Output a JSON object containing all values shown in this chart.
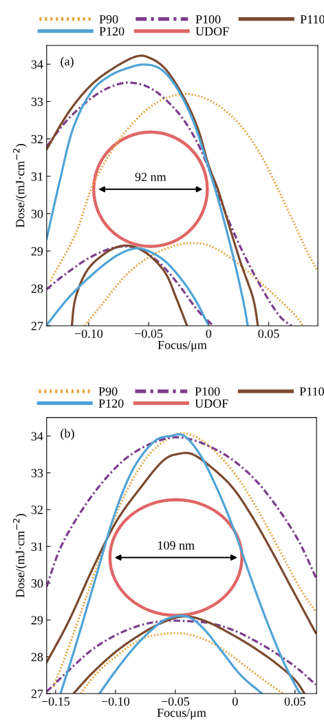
{
  "chart_data": [
    {
      "type": "line",
      "title": "(a)",
      "xlabel": "Focus/μm",
      "ylabel": "Dose/(mJ·cm$^{−2}$)",
      "xlim": [
        -0.135,
        0.091
      ],
      "ylim": [
        27,
        34.5
      ],
      "xticks": [
        {
          "value": -0.1,
          "label": "−0.10"
        },
        {
          "value": -0.05,
          "label": "−0.05"
        },
        0,
        0.05
      ],
      "yticks": [
        27,
        28,
        29,
        30,
        31,
        32,
        33,
        34
      ],
      "legend": "top",
      "grid": false,
      "annotations": [
        "92 nm"
      ],
      "series": [
        {
          "name": "P90",
          "color": "#e8a33d",
          "line_style": "dotted",
          "x": [
            -0.132,
            -0.111,
            -0.098,
            -0.0824,
            -0.067,
            -0.0498,
            -0.0326,
            -0.0172,
            -0.0019,
            0.0134,
            0.0287,
            0.044,
            0.0575,
            0.0709,
            0.0824,
            0.091
          ],
          "values": [
            28.2,
            29.45,
            30.65,
            31.6,
            32.28,
            32.83,
            33.13,
            33.2,
            33.07,
            32.77,
            32.28,
            31.54,
            30.68,
            29.76,
            28.96,
            28.47
          ]
        },
        {
          "color": "#e8a33d",
          "line_style": "dotted",
          "x": [
            -0.1035,
            -0.088,
            -0.069,
            -0.0498,
            -0.0307,
            -0.0153,
            0.0,
            0.0172,
            0.0364,
            0.0556,
            0.073,
            0.0785
          ],
          "values": [
            27,
            27.61,
            28.35,
            28.84,
            29.12,
            29.21,
            29.15,
            28.84,
            28.35,
            27.8,
            27.25,
            27
          ]
        },
        {
          "name": "P100",
          "color": "#7d3c8c",
          "line_style": "dashdot",
          "x": [
            -0.135,
            -0.1207,
            -0.1054,
            -0.09,
            -0.0747,
            -0.063,
            -0.0498,
            -0.0364,
            -0.021,
            -0.0077,
            0.0019,
            0.0134,
            0.025,
            0.0364,
            0.048,
            0.0594,
            0.069
          ],
          "values": [
            31.79,
            32.4,
            32.89,
            33.26,
            33.47,
            33.5,
            33.38,
            33.07,
            32.52,
            31.79,
            31.05,
            30.07,
            29.21,
            28.47,
            27.8,
            27.25,
            27
          ]
        },
        {
          "color": "#7d3c8c",
          "line_style": "dashdot",
          "x": [
            -0.135,
            -0.1207,
            -0.1015,
            -0.0824,
            -0.067,
            -0.0556,
            -0.0402,
            -0.025,
            -0.0096,
            0.0038
          ],
          "values": [
            27.98,
            28.35,
            28.78,
            29.06,
            29.12,
            29.02,
            28.66,
            28.1,
            27.43,
            27
          ]
        },
        {
          "name": "P110",
          "color": "#7b4a2e",
          "line_style": "solid",
          "x": [
            -0.135,
            -0.117,
            -0.098,
            -0.079,
            -0.061,
            -0.05,
            -0.036,
            -0.021,
            -0.009,
            0.0,
            0.008,
            0.018,
            0.027,
            0.037,
            0.041
          ],
          "values": [
            31.72,
            32.7,
            33.44,
            33.9,
            34.2,
            34.18,
            33.87,
            33.13,
            32.28,
            31.29,
            30.62,
            29.58,
            28.66,
            27.74,
            27
          ]
        },
        {
          "color": "#7b4a2e",
          "line_style": "solid",
          "x": [
            -0.114,
            -0.111,
            -0.1015,
            -0.088,
            -0.075,
            -0.063,
            -0.05,
            -0.036,
            -0.027,
            -0.018
          ],
          "values": [
            27,
            27.74,
            28.47,
            28.9,
            29.12,
            29.12,
            28.9,
            28.41,
            27.74,
            27
          ]
        },
        {
          "name": "P120",
          "color": "#4fa3d6",
          "line_style": "solid",
          "x": [
            -0.135,
            -0.1246,
            -0.113,
            -0.0977,
            -0.0824,
            -0.067,
            -0.0537,
            -0.04,
            -0.0268,
            -0.0134,
            -0.0019,
            0.0096,
            0.021,
            0.0288,
            0.0326
          ],
          "values": [
            29.33,
            30.8,
            32.28,
            33.26,
            33.69,
            33.9,
            33.99,
            33.87,
            33.38,
            32.52,
            31.42,
            30.19,
            28.78,
            27.67,
            27
          ]
        },
        {
          "color": "#4fa3d6",
          "line_style": "solid",
          "x": [
            -0.134,
            -0.117,
            -0.0977,
            -0.0785,
            -0.063,
            -0.0517,
            -0.036,
            -0.021,
            -0.0096,
            -0.001
          ],
          "values": [
            27.06,
            27.74,
            28.35,
            28.84,
            29.06,
            29.02,
            28.72,
            28.17,
            27.61,
            27.06
          ]
        },
        {
          "name": "UDOF",
          "color": "#e06666",
          "type": "other"
        }
      ]
    },
    {
      "type": "line",
      "title": "(b)",
      "xlabel": "Focus/μm",
      "ylabel": "Dose/(mJ·cm$^{−2}$)",
      "xlim": [
        -0.1575,
        0.068
      ],
      "ylim": [
        27,
        34.5
      ],
      "xticks": [
        {
          "value": -0.15,
          "label": "−0.15"
        },
        {
          "value": -0.1,
          "label": "−0.10"
        },
        {
          "value": -0.05,
          "label": "−0.05"
        },
        0,
        0.05
      ],
      "yticks": [
        27,
        28,
        29,
        30,
        31,
        32,
        33,
        34
      ],
      "legend": "top",
      "grid": false,
      "annotations": [
        "109 nm"
      ],
      "series": [
        {
          "name": "P90",
          "color": "#e8a33d",
          "line_style": "dotted",
          "x": [
            -0.1518,
            -0.139,
            -0.1232,
            -0.1094,
            -0.0937,
            -0.076,
            -0.0602,
            -0.0465,
            -0.0307,
            -0.013,
            0.0047,
            0.0224,
            0.0382,
            0.054,
            0.0673
          ],
          "values": [
            27.18,
            28.27,
            29.74,
            31.02,
            32.3,
            33.33,
            33.84,
            34.07,
            33.94,
            33.46,
            32.75,
            31.79,
            30.83,
            29.87,
            29.23
          ]
        },
        {
          "color": "#e8a33d",
          "line_style": "dotted",
          "x": [
            -0.1291,
            -0.1154,
            -0.0996,
            -0.0799,
            -0.0602,
            -0.0406,
            -0.0209,
            -0.0051,
            0.0106,
            0.0264,
            0.0402
          ],
          "values": [
            27,
            27.56,
            28.01,
            28.46,
            28.62,
            28.62,
            28.4,
            28.08,
            27.69,
            27.31,
            27
          ]
        },
        {
          "name": "P100",
          "color": "#7d3c8c",
          "line_style": "dashdot",
          "x": [
            -0.1575,
            -0.1468,
            -0.133,
            -0.1154,
            -0.0957,
            -0.076,
            -0.0563,
            -0.0406,
            -0.0209,
            -0.0012,
            0.0185,
            0.0382,
            0.054,
            0.0673
          ],
          "values": [
            29.9,
            30.9,
            31.73,
            32.56,
            33.27,
            33.71,
            33.94,
            33.94,
            33.71,
            33.33,
            32.75,
            31.92,
            31.09,
            30.16
          ]
        },
        {
          "color": "#7d3c8c",
          "line_style": "dashdot",
          "x": [
            -0.1575,
            -0.139,
            -0.1193,
            -0.0996,
            -0.0799,
            -0.0602,
            -0.0406,
            -0.0209,
            -0.0012,
            0.0185,
            0.0382,
            0.054,
            0.0673
          ],
          "values": [
            27.05,
            27.63,
            28.2,
            28.59,
            28.85,
            28.97,
            28.97,
            28.91,
            28.72,
            28.4,
            28.01,
            27.63,
            27.24
          ]
        },
        {
          "name": "P110",
          "color": "#7b4a2e",
          "line_style": "solid",
          "x": [
            -0.1575,
            -0.139,
            -0.1193,
            -0.0996,
            -0.0799,
            -0.0602,
            -0.0465,
            -0.0346,
            -0.0169,
            -0.0012,
            0.0146,
            0.0303,
            0.0461,
            0.0673
          ],
          "values": [
            27.85,
            28.97,
            30.38,
            31.66,
            32.56,
            33.33,
            33.52,
            33.49,
            33.07,
            32.56,
            31.79,
            30.89,
            29.93,
            28.65
          ]
        },
        {
          "color": "#7b4a2e",
          "line_style": "solid",
          "x": [
            -0.135,
            -0.1193,
            -0.0996,
            -0.0799,
            -0.0602,
            -0.0425,
            -0.0248,
            -0.0051,
            0.0146,
            0.0343,
            0.05,
            0.0579
          ],
          "values": [
            27,
            27.56,
            28.14,
            28.59,
            28.94,
            29.1,
            28.97,
            28.65,
            28.27,
            27.82,
            27.37,
            27
          ]
        },
        {
          "name": "P120",
          "color": "#4fa3d6",
          "line_style": "solid",
          "x": [
            -0.1459,
            -0.133,
            -0.1173,
            -0.1016,
            -0.0858,
            -0.0681,
            -0.0543,
            -0.0425,
            -0.0287,
            -0.015,
            -0.0012,
            0.0126,
            0.0264,
            0.0402,
            0.052,
            0.0549
          ],
          "values": [
            27,
            28.33,
            30.06,
            31.79,
            33.07,
            33.84,
            34.0,
            34.0,
            33.46,
            32.56,
            31.47,
            30.19,
            28.97,
            27.88,
            27.12,
            27
          ]
        },
        {
          "color": "#4fa3d6",
          "line_style": "solid",
          "x": [
            -0.1134,
            -0.0996,
            -0.0839,
            -0.0681,
            -0.0563,
            -0.0406,
            -0.0268,
            -0.011,
            0.0047,
            0.0224
          ],
          "values": [
            27,
            27.63,
            28.27,
            28.78,
            29.04,
            29.1,
            28.78,
            28.14,
            27.5,
            27
          ]
        },
        {
          "name": "UDOF",
          "color": "#e06666",
          "type": "other"
        }
      ]
    }
  ]
}
